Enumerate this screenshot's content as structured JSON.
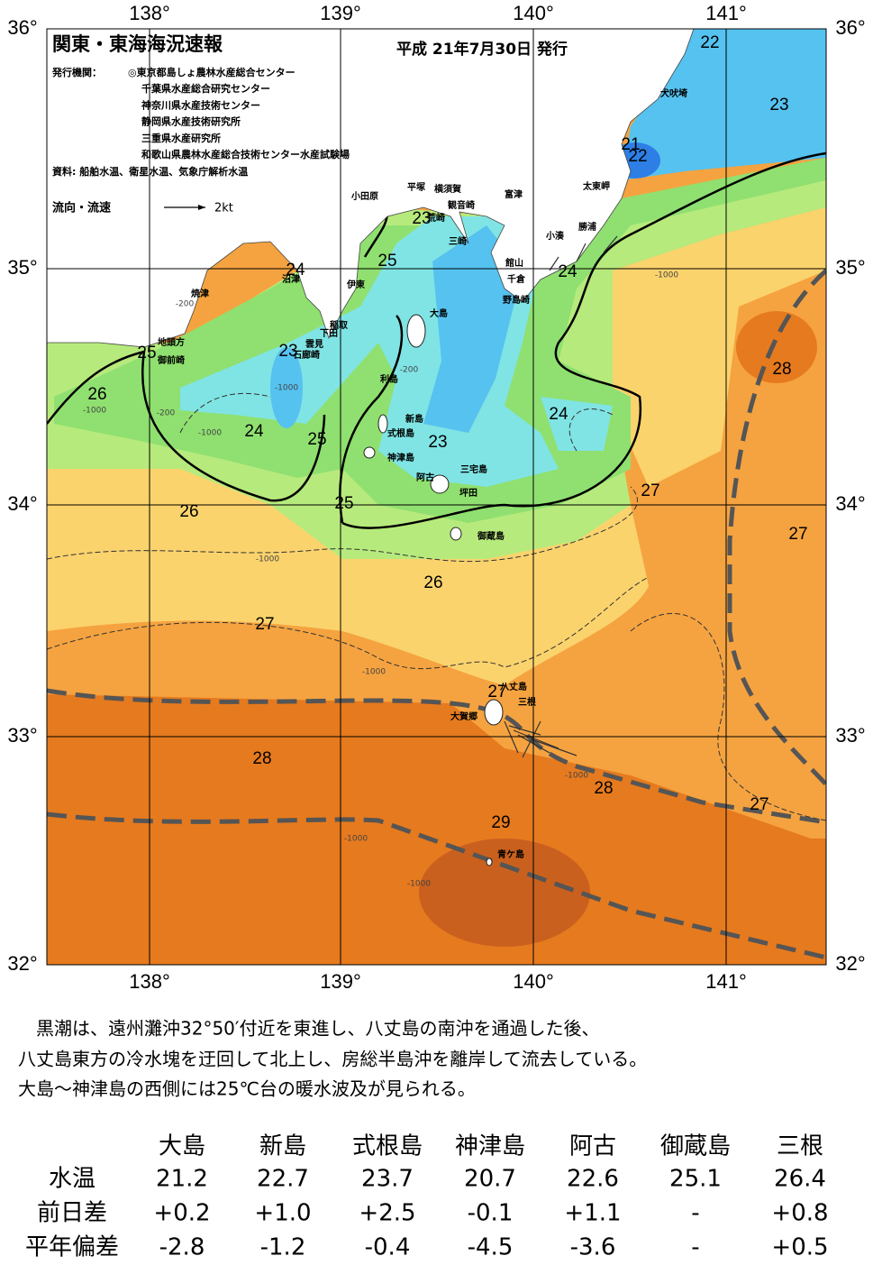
{
  "map": {
    "title": "関東・東海海況速報",
    "issued": "平成 21年7月30日 発行",
    "agencies_label": "発行機関：",
    "agencies": [
      "◎東京都島しょ農林水産総合センター",
      "千葉県水産総合研究センター",
      "神奈川県水産技術センター",
      "静岡県水産技術研究所",
      "三重県水産研究所",
      "和歌山県農林水産総合技術センター水産試験場"
    ],
    "sources": "資料: 船舶水温、衛星水温、気象庁解析水温",
    "current_legend": "流向・流速",
    "current_scale": "2kt",
    "lon_labels": [
      "138°",
      "139°",
      "140°",
      "141°"
    ],
    "lat_labels": [
      "36°",
      "35°",
      "34°",
      "33°",
      "32°"
    ],
    "isotherm_labels": [
      "22",
      "23",
      "21",
      "22",
      "23",
      "25",
      "24",
      "24",
      "25",
      "28",
      "23",
      "26",
      "24",
      "24",
      "25",
      "23",
      "27",
      "25",
      "26",
      "27",
      "26",
      "27",
      "27",
      "28",
      "28",
      "27",
      "29"
    ],
    "depth_labels": [
      "-1000",
      "-200",
      "-200",
      "-1000",
      "-200",
      "-1000",
      "-1000",
      "-1000",
      "-1000",
      "-1000",
      "-1000",
      "-1000"
    ],
    "places": [
      "犬吠埼",
      "太東岬",
      "富津",
      "横須賀",
      "平塚",
      "小田原",
      "観音崎",
      "荒崎",
      "三崎",
      "勝浦",
      "小湊",
      "館山",
      "千倉",
      "野島崎",
      "伊東",
      "大島",
      "稲取",
      "下田",
      "雲見",
      "石廊崎",
      "地頭方",
      "御前崎",
      "焼津",
      "沼津",
      "利島",
      "新島",
      "式根島",
      "神津島",
      "三宅島",
      "阿古",
      "坪田",
      "御蔵島",
      "八丈島",
      "三根",
      "大賀郷",
      "青ケ島"
    ]
  },
  "summary": [
    "黒潮は、遠州灘沖32°50′付近を東進し、八丈島の南沖を通過した後、",
    "八丈島東方の冷水塊を迂回して北上し、房総半島沖を離岸して流去している。",
    "大島～神津島の西側には25℃台の暖水波及が見られる。"
  ],
  "table": {
    "columns": [
      "大島",
      "新島",
      "式根島",
      "神津島",
      "阿古",
      "御蔵島",
      "三根"
    ],
    "rows": [
      {
        "label": "水温",
        "values": [
          "21.2",
          "22.7",
          "23.7",
          "20.7",
          "22.6",
          "25.1",
          "26.4"
        ]
      },
      {
        "label": "前日差",
        "values": [
          "+0.2",
          "+1.0",
          "+2.5",
          "-0.1",
          "+1.1",
          "-",
          "+0.8"
        ]
      },
      {
        "label": "平年偏差",
        "values": [
          "-2.8",
          "-1.2",
          "-0.4",
          "-4.5",
          "-3.6",
          "-",
          "+0.5"
        ]
      }
    ]
  }
}
